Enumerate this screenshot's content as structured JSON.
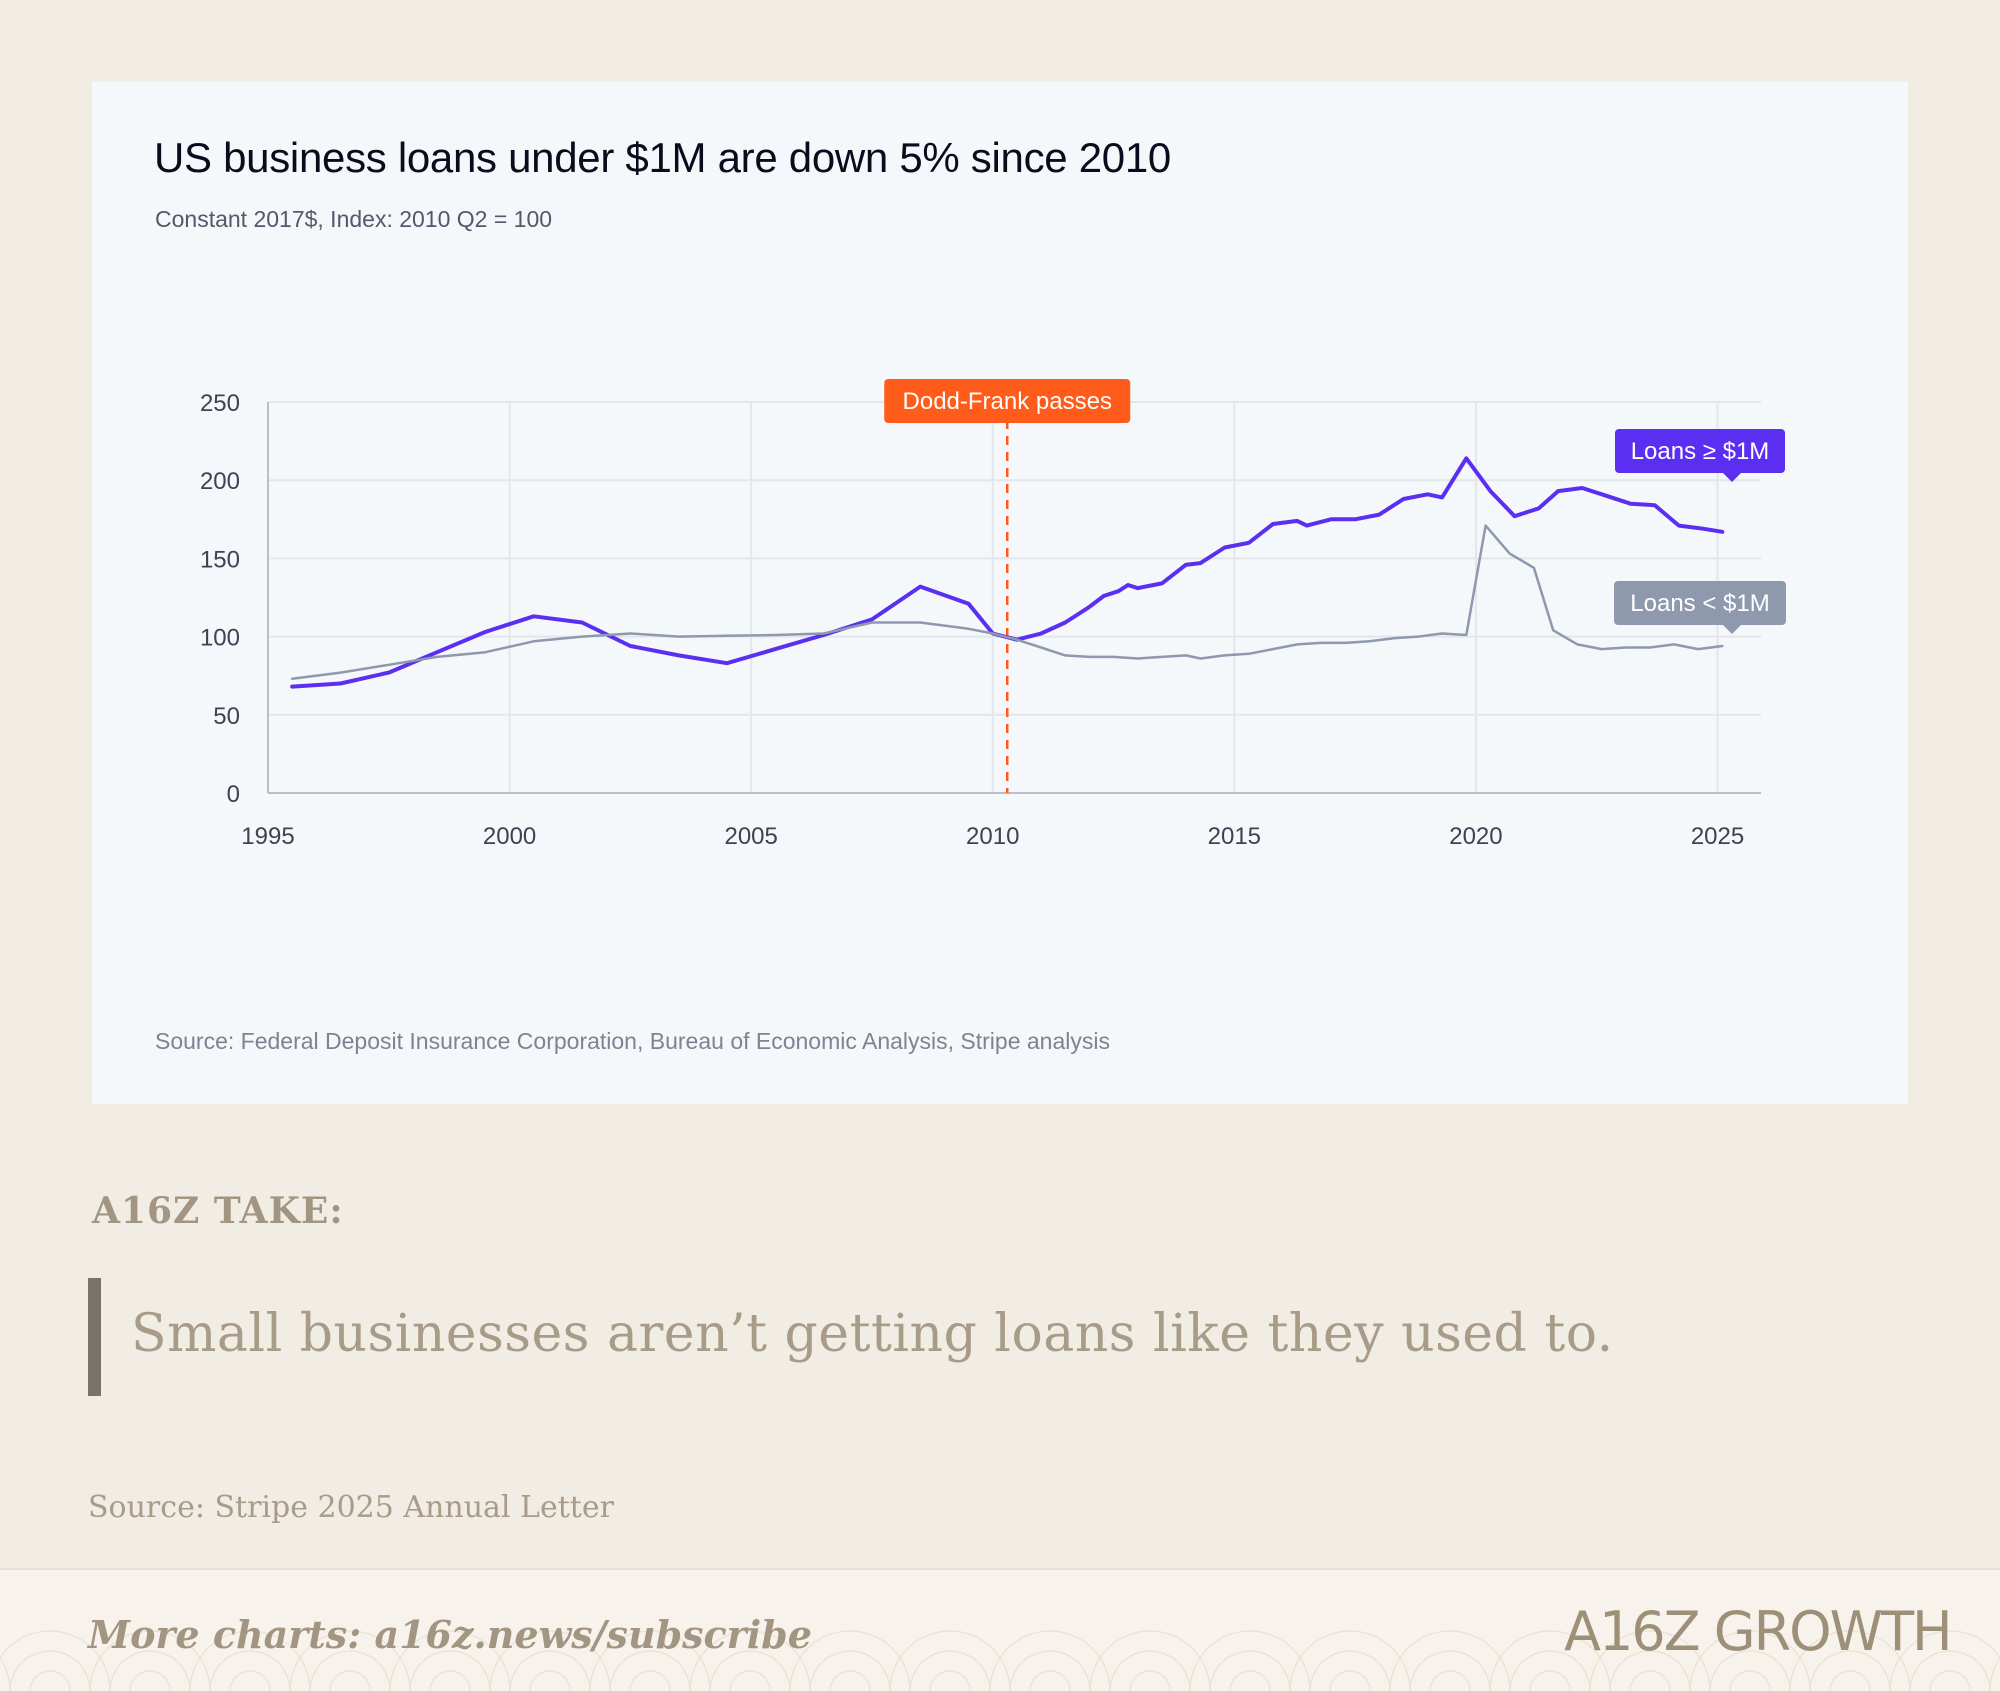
{
  "chart_data": {
    "type": "line",
    "title": "US business loans under $1M are down 5% since 2010",
    "subtitle": "Constant 2017$, Index: 2010 Q2 = 100",
    "xlabel": "",
    "ylabel": "",
    "xlim": [
      1995,
      2025.9
    ],
    "ylim": [
      0,
      250
    ],
    "x_ticks": [
      "1995",
      "2000",
      "2005",
      "2010",
      "2015",
      "2020",
      "2025"
    ],
    "y_ticks": [
      "0",
      "50",
      "100",
      "150",
      "200",
      "250"
    ],
    "grid": true,
    "legend": "inline labels at right end of each series",
    "annotations": [
      {
        "type": "vertical-dashed-line",
        "x": 2010.3,
        "label": "Dodd-Frank passes",
        "color": "#ff5c1b"
      }
    ],
    "series": [
      {
        "name": "Loans ≥ $1M",
        "color": "#5b2ff2",
        "points": [
          [
            1995.5,
            68
          ],
          [
            1996.5,
            70
          ],
          [
            1997.5,
            77
          ],
          [
            1998.5,
            90
          ],
          [
            1999.5,
            103
          ],
          [
            2000.5,
            113
          ],
          [
            2001.5,
            109
          ],
          [
            2002.5,
            94
          ],
          [
            2003.5,
            88
          ],
          [
            2004.5,
            83
          ],
          [
            2005.5,
            92
          ],
          [
            2006.5,
            101
          ],
          [
            2007.5,
            111
          ],
          [
            2008.5,
            132
          ],
          [
            2009.5,
            121
          ],
          [
            2010,
            102
          ],
          [
            2010.5,
            98
          ],
          [
            2011,
            102
          ],
          [
            2011.5,
            109
          ],
          [
            2012,
            119
          ],
          [
            2012.3,
            126
          ],
          [
            2012.6,
            129
          ],
          [
            2012.8,
            133
          ],
          [
            2013,
            131
          ],
          [
            2013.5,
            134
          ],
          [
            2014,
            146
          ],
          [
            2014.3,
            147
          ],
          [
            2014.8,
            157
          ],
          [
            2015.3,
            160
          ],
          [
            2015.8,
            172
          ],
          [
            2016.3,
            174
          ],
          [
            2016.5,
            171
          ],
          [
            2017,
            175
          ],
          [
            2017.5,
            175
          ],
          [
            2018,
            178
          ],
          [
            2018.5,
            188
          ],
          [
            2019,
            191
          ],
          [
            2019.3,
            189
          ],
          [
            2019.8,
            214
          ],
          [
            2020.3,
            193
          ],
          [
            2020.8,
            177
          ],
          [
            2021.3,
            182
          ],
          [
            2021.7,
            193
          ],
          [
            2022.2,
            195
          ],
          [
            2022.7,
            190
          ],
          [
            2023.2,
            185
          ],
          [
            2023.7,
            184
          ],
          [
            2024.2,
            171
          ],
          [
            2024.7,
            169
          ],
          [
            2025.1,
            167
          ]
        ]
      },
      {
        "name": "Loans < $1M",
        "color": "#8f99ad",
        "points": [
          [
            1995.5,
            73
          ],
          [
            1996.5,
            77
          ],
          [
            1997.5,
            82
          ],
          [
            1998.5,
            87
          ],
          [
            1999.5,
            90
          ],
          [
            2000.5,
            97
          ],
          [
            2001.5,
            100
          ],
          [
            2002.5,
            102
          ],
          [
            2003.5,
            100
          ],
          [
            2004.5,
            100.5
          ],
          [
            2005.5,
            101
          ],
          [
            2006.5,
            102
          ],
          [
            2007.5,
            109
          ],
          [
            2008.5,
            109
          ],
          [
            2009.5,
            105
          ],
          [
            2010,
            102
          ],
          [
            2010.5,
            98
          ],
          [
            2011,
            93
          ],
          [
            2011.5,
            88
          ],
          [
            2012,
            87
          ],
          [
            2012.5,
            87
          ],
          [
            2013,
            86
          ],
          [
            2013.5,
            87
          ],
          [
            2014,
            88
          ],
          [
            2014.3,
            86
          ],
          [
            2014.8,
            88
          ],
          [
            2015.3,
            89
          ],
          [
            2015.8,
            92
          ],
          [
            2016.3,
            95
          ],
          [
            2016.8,
            96
          ],
          [
            2017.3,
            96
          ],
          [
            2017.8,
            97
          ],
          [
            2018.3,
            99
          ],
          [
            2018.8,
            100
          ],
          [
            2019.3,
            102
          ],
          [
            2019.8,
            101
          ],
          [
            2020.2,
            171
          ],
          [
            2020.7,
            153
          ],
          [
            2021.2,
            144
          ],
          [
            2021.6,
            104
          ],
          [
            2022.1,
            95
          ],
          [
            2022.6,
            92
          ],
          [
            2023.1,
            93
          ],
          [
            2023.6,
            93
          ],
          [
            2024.1,
            95
          ],
          [
            2024.6,
            92
          ],
          [
            2025.1,
            94
          ]
        ]
      }
    ]
  },
  "chart_source": "Source: Federal Deposit Insurance Corporation, Bureau of Economic Analysis, Stripe analysis",
  "take_label": "A16Z TAKE:",
  "take_text": "Small businesses aren’t getting loans like they used to.",
  "letter_source": "Source: Stripe 2025 Annual Letter",
  "footer": {
    "cta": "More charts: a16z.news/subscribe",
    "brand": "A16Z GROWTH"
  }
}
